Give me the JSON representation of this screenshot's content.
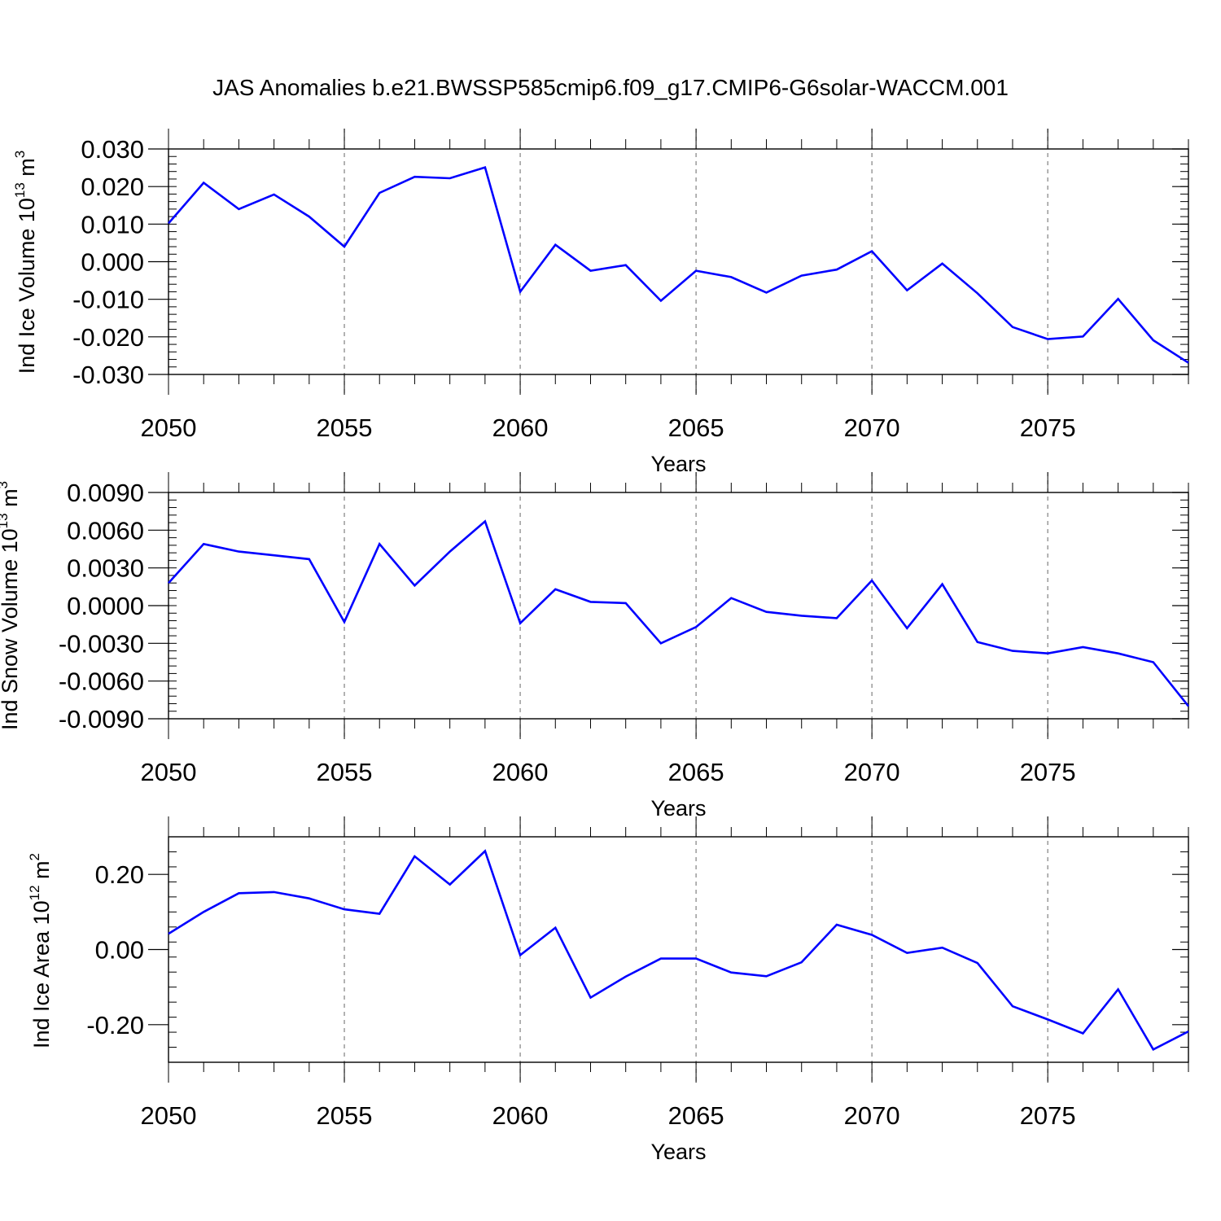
{
  "title": "JAS Anomalies b.e21.BWSSP585cmip6.f09_g17.CMIP6-G6solar-WACCM.001",
  "colors": {
    "series": "#0000ff",
    "axis": "#000000",
    "grid": "#808080"
  },
  "chart_data": [
    {
      "type": "line",
      "title": "JAS Anomalies b.e21.BWSSP585cmip6.f09_g17.CMIP6-G6solar-WACCM.001",
      "ylabel": "Ind Ice Volume 10",
      "ylabel_exp": "13",
      "ylabel_unit": " m",
      "ylabel_unit_exp": "3",
      "xlabel": "Years",
      "xlim": [
        2050,
        2079
      ],
      "ylim": [
        -0.03,
        0.03
      ],
      "xticks": [
        2050,
        2055,
        2060,
        2065,
        2070,
        2075
      ],
      "yticks": [
        -0.03,
        -0.02,
        -0.01,
        0.0,
        0.01,
        0.02,
        0.03
      ],
      "ytick_labels": [
        "-0.030",
        "-0.020",
        "-0.010",
        "0.000",
        "0.010",
        "0.020",
        "0.030"
      ],
      "x": [
        2050,
        2051,
        2052,
        2053,
        2054,
        2055,
        2056,
        2057,
        2058,
        2059,
        2060,
        2061,
        2062,
        2063,
        2064,
        2065,
        2066,
        2067,
        2068,
        2069,
        2070,
        2071,
        2072,
        2073,
        2074,
        2075,
        2076,
        2077,
        2078,
        2079
      ],
      "y": [
        0.0102,
        0.021,
        0.014,
        0.0179,
        0.012,
        0.004,
        0.0183,
        0.0226,
        0.0222,
        0.0251,
        -0.008,
        0.0045,
        -0.0024,
        -0.0009,
        -0.0104,
        -0.0024,
        -0.0041,
        -0.0082,
        -0.0037,
        -0.0021,
        0.0028,
        -0.0076,
        -0.0005,
        -0.0084,
        -0.0174,
        -0.0206,
        -0.0199,
        -0.0099,
        -0.0209,
        -0.0269
      ]
    },
    {
      "type": "line",
      "ylabel": "Ind Snow Volume 10",
      "ylabel_exp": "13",
      "ylabel_unit": " m",
      "ylabel_unit_exp": "3",
      "xlabel": "Years",
      "xlim": [
        2050,
        2079
      ],
      "ylim": [
        -0.009,
        0.009
      ],
      "xticks": [
        2050,
        2055,
        2060,
        2065,
        2070,
        2075
      ],
      "yticks": [
        -0.009,
        -0.006,
        -0.003,
        0.0,
        0.003,
        0.006,
        0.009
      ],
      "ytick_labels": [
        "-0.0090",
        "-0.0060",
        "-0.0030",
        "0.0000",
        "0.0030",
        "0.0060",
        "0.0090"
      ],
      "x": [
        2050,
        2051,
        2052,
        2053,
        2054,
        2055,
        2056,
        2057,
        2058,
        2059,
        2060,
        2061,
        2062,
        2063,
        2064,
        2065,
        2066,
        2067,
        2068,
        2069,
        2070,
        2071,
        2072,
        2073,
        2074,
        2075,
        2076,
        2077,
        2078,
        2079
      ],
      "y": [
        0.0018,
        0.0049,
        0.0043,
        0.004,
        0.0037,
        -0.0013,
        0.0049,
        0.0016,
        0.0043,
        0.0067,
        -0.0014,
        0.0013,
        0.0003,
        0.0002,
        -0.003,
        -0.0017,
        0.0006,
        -0.0005,
        -0.0008,
        -0.001,
        0.002,
        -0.0018,
        0.0017,
        -0.0029,
        -0.0036,
        -0.0038,
        -0.0033,
        -0.0038,
        -0.0045,
        -0.008
      ]
    },
    {
      "type": "line",
      "ylabel": "Ind Ice Area 10",
      "ylabel_exp": "12",
      "ylabel_unit": " m",
      "ylabel_unit_exp": "2",
      "xlabel": "Years",
      "xlim": [
        2050,
        2079
      ],
      "ylim": [
        -0.3,
        0.3
      ],
      "xticks": [
        2050,
        2055,
        2060,
        2065,
        2070,
        2075
      ],
      "yticks": [
        -0.2,
        0.0,
        0.2
      ],
      "ytick_labels": [
        "-0.20",
        "0.00",
        "0.20"
      ],
      "x": [
        2050,
        2051,
        2052,
        2053,
        2054,
        2055,
        2056,
        2057,
        2058,
        2059,
        2060,
        2061,
        2062,
        2063,
        2064,
        2065,
        2066,
        2067,
        2068,
        2069,
        2070,
        2071,
        2072,
        2073,
        2074,
        2075,
        2076,
        2077,
        2078,
        2079
      ],
      "y": [
        0.042,
        0.1,
        0.15,
        0.153,
        0.136,
        0.107,
        0.095,
        0.248,
        0.173,
        0.262,
        -0.015,
        0.058,
        -0.128,
        -0.072,
        -0.024,
        -0.024,
        -0.061,
        -0.071,
        -0.034,
        0.066,
        0.039,
        -0.009,
        0.005,
        -0.036,
        -0.151,
        -0.186,
        -0.223,
        -0.106,
        -0.266,
        -0.218
      ]
    }
  ]
}
